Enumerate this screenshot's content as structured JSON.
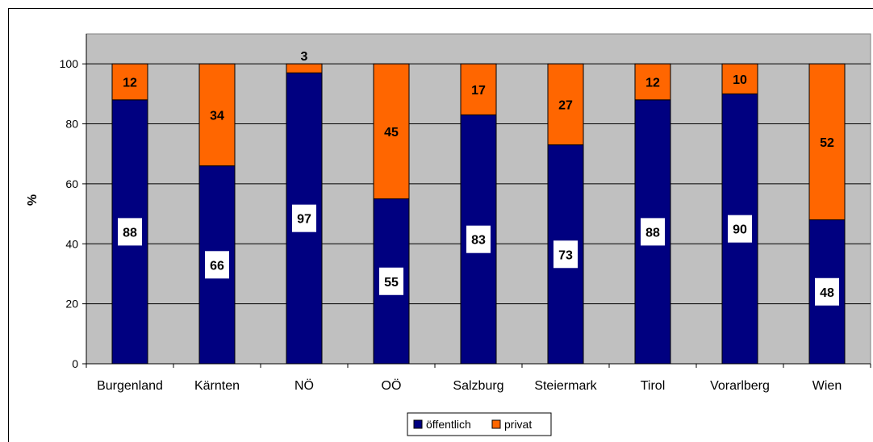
{
  "chart_data": {
    "type": "bar",
    "stacked": true,
    "title": "",
    "xlabel": "",
    "ylabel": "%",
    "ylim": [
      0,
      110
    ],
    "yticks": [
      0,
      20,
      40,
      60,
      80,
      100
    ],
    "grid": true,
    "legend_position": "bottom-center",
    "plot_background": "#c0c0c0",
    "categories": [
      "Burgenland",
      "Kärnten",
      "NÖ",
      "OÖ",
      "Salzburg",
      "Steiermark",
      "Tirol",
      "Vorarlberg",
      "Wien"
    ],
    "series": [
      {
        "name": "öffentlich",
        "color": "#000080",
        "values": [
          88,
          66,
          97,
          55,
          83,
          73,
          88,
          90,
          48
        ],
        "labels": [
          "88",
          "66",
          "97",
          "55",
          "83",
          "73",
          "88",
          "90",
          "48"
        ]
      },
      {
        "name": "privat",
        "color": "#ff6600",
        "values": [
          12,
          34,
          3,
          45,
          17,
          27,
          12,
          10,
          52
        ],
        "labels": [
          "12",
          "34",
          "3",
          "45",
          "17",
          "27",
          "12",
          "10",
          "52"
        ]
      }
    ]
  }
}
